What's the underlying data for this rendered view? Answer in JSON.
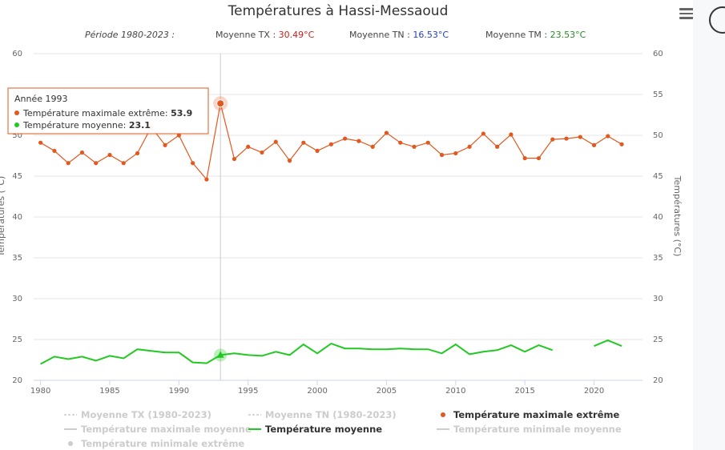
{
  "chart_data": {
    "type": "line",
    "title": "Températures à Hassi-Messaoud",
    "subtitle": {
      "period": "Période 1980-2023 :",
      "tx_label": "Moyenne TX : ",
      "tx_value": "30.49°C",
      "tn_label": "Moyenne TN : ",
      "tn_value": "16.53°C",
      "tm_label": "Moyenne TM : ",
      "tm_value": "23.53°C"
    },
    "ylabel_left": "Températures (°C)",
    "ylabel_right": "Températures (°C)",
    "ylim": [
      20,
      60
    ],
    "yticks": [
      "20",
      "25",
      "30",
      "35",
      "40",
      "45",
      "50",
      "55",
      "60"
    ],
    "xlim": [
      1979.5,
      2023.5
    ],
    "xticks": [
      "1980",
      "1985",
      "1990",
      "1995",
      "2000",
      "2005",
      "2010",
      "2015",
      "2020"
    ],
    "grid": true,
    "legend_position": "bottom",
    "colors": {
      "max": "#e2581e",
      "mean": "#22c922",
      "tx_value": "#d11b1b",
      "tn_value": "#1f3fbf",
      "tm_value": "#238c23",
      "hidden": "#cccccc"
    },
    "series": [
      {
        "name": "Température maximale extrême",
        "x": [
          1980,
          1981,
          1982,
          1983,
          1984,
          1985,
          1986,
          1987,
          1988,
          1989,
          1990,
          1991,
          1992,
          1993,
          1994,
          1995,
          1996,
          1997,
          1998,
          1999,
          2000,
          2001,
          2002,
          2003,
          2004,
          2005,
          2006,
          2007,
          2008,
          2009,
          2010,
          2011,
          2012,
          2013,
          2014,
          2015,
          2016,
          2017,
          2018,
          2019,
          2020,
          2021,
          2022
        ],
        "values": [
          49.1,
          48.1,
          46.6,
          47.9,
          46.6,
          47.6,
          46.6,
          47.8,
          51.0,
          48.8,
          50.0,
          46.6,
          44.6,
          53.9,
          47.1,
          48.6,
          47.9,
          49.2,
          46.9,
          49.1,
          48.1,
          48.9,
          49.6,
          49.3,
          48.6,
          50.3,
          49.1,
          48.6,
          49.1,
          47.6,
          47.8,
          48.6,
          50.2,
          48.6,
          50.1,
          47.2,
          47.2,
          49.5,
          49.6,
          49.8,
          48.8,
          49.9,
          48.9
        ]
      },
      {
        "name": "Température moyenne",
        "x": [
          1980,
          1981,
          1982,
          1983,
          1984,
          1985,
          1986,
          1987,
          1988,
          1989,
          1990,
          1991,
          1992,
          1993,
          1994,
          1995,
          1996,
          1997,
          1998,
          1999,
          2000,
          2001,
          2002,
          2003,
          2004,
          2005,
          2006,
          2007,
          2008,
          2009,
          2010,
          2011,
          2012,
          2013,
          2014,
          2015,
          2016,
          2017,
          2018,
          2019,
          2020,
          2021,
          2022
        ],
        "values": [
          22.0,
          22.9,
          22.6,
          22.9,
          22.4,
          23.0,
          22.7,
          23.8,
          23.6,
          23.4,
          23.4,
          22.2,
          22.1,
          23.1,
          23.3,
          23.1,
          23.0,
          23.5,
          23.1,
          24.4,
          23.3,
          24.5,
          23.9,
          23.9,
          23.8,
          23.8,
          23.9,
          23.8,
          23.8,
          23.3,
          24.4,
          23.2,
          23.5,
          23.7,
          24.3,
          23.5,
          24.3,
          23.7,
          null,
          null,
          24.2,
          24.9,
          24.2
        ]
      }
    ],
    "legend": [
      {
        "label": "Moyenne TX (1980-2023)",
        "symbol": "dash",
        "active": false
      },
      {
        "label": "Moyenne TN (1980-2023)",
        "symbol": "dash",
        "active": false
      },
      {
        "label": "Température maximale extrême",
        "symbol": "dot",
        "active": true
      },
      {
        "label": "Température maximale moyenne",
        "symbol": "line",
        "active": false
      },
      {
        "label": "Température moyenne",
        "symbol": "line",
        "active": true
      },
      {
        "label": "Température minimale moyenne",
        "symbol": "line",
        "active": false
      },
      {
        "label": "Température minimale extrême",
        "symbol": "dot",
        "active": false
      }
    ],
    "tooltip": {
      "header": "Année 1993",
      "x": 1993,
      "rows": [
        {
          "label": "Température maximale extrême: ",
          "value": "53.9",
          "series": 0
        },
        {
          "label": "Température moyenne: ",
          "value": "23.1",
          "series": 1
        }
      ]
    }
  },
  "menu": {
    "icon": "hamburger-menu-icon"
  }
}
